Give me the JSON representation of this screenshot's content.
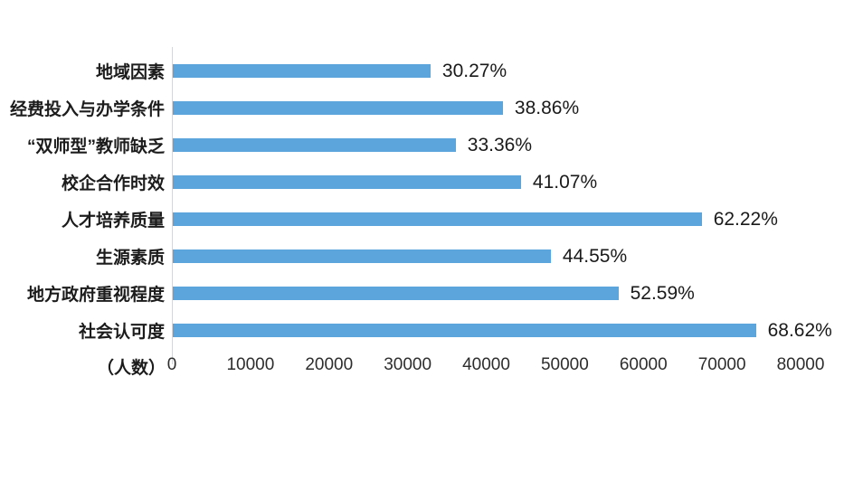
{
  "chart_data": {
    "type": "bar",
    "orientation": "horizontal",
    "title": "",
    "categories": [
      "地域因素",
      "经费投入与办学条件",
      "“双师型”教师缺乏",
      "校企合作时效",
      "人才培养质量",
      "生源素质",
      "地方政府重视程度",
      "社会认可度"
    ],
    "percent_labels": [
      "30.27%",
      "38.86%",
      "33.36%",
      "41.07%",
      "62.22%",
      "44.55%",
      "52.59%",
      "68.62%"
    ],
    "values_people_est": [
      32800,
      42000,
      36000,
      44300,
      67300,
      48100,
      56700,
      74200
    ],
    "x_axis": {
      "unit_label": "（人数）",
      "min": 0,
      "max": 80000,
      "tick_labels": [
        "0",
        "10000",
        "20000",
        "30000",
        "40000",
        "50000",
        "60000",
        "70000",
        "80000"
      ]
    },
    "bar_color": "#5BA4DC",
    "axis_line_color": "#D4D7DA",
    "background": "#FFFFFF",
    "grid": false,
    "legend": false
  }
}
